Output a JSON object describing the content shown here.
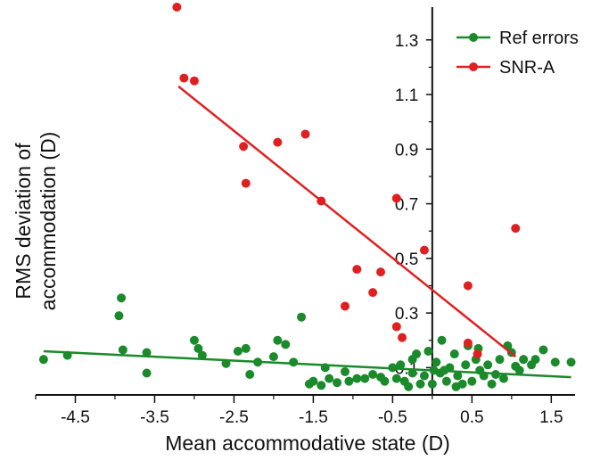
{
  "chart_data": {
    "type": "scatter",
    "title": "",
    "xlabel": "Mean accommodative state (D)",
    "ylabel_lines": [
      "RMS deviation of",
      "accommodation (D)"
    ],
    "xlim": [
      -5.0,
      1.8
    ],
    "ylim": [
      0.0,
      1.42
    ],
    "x_ticks": [
      -4.5,
      -3.5,
      -2.5,
      -1.5,
      -0.5,
      0.5,
      1.5
    ],
    "x_tick_labels": [
      "-4.5",
      "-3.5",
      "-2.5",
      "-1.5",
      "-0.5",
      "0.5",
      "1.5"
    ],
    "y_ticks": [
      0.1,
      0.3,
      0.5,
      0.7,
      0.9,
      1.1,
      1.3
    ],
    "y_tick_labels": [
      "0.1",
      "0.3",
      "0.5",
      "0.7",
      "0.9",
      "1.1",
      "1.3"
    ],
    "y_axis_at_x": 0.0,
    "grid": false,
    "legend_position": "top-right",
    "series": [
      {
        "name": "Ref errors",
        "color": "#1a8a2a",
        "fit": [
          [
            -4.9,
            0.16
          ],
          [
            1.75,
            0.065
          ]
        ],
        "points": [
          [
            -4.9,
            0.13
          ],
          [
            -4.6,
            0.145
          ],
          [
            -3.92,
            0.355
          ],
          [
            -3.95,
            0.29
          ],
          [
            -3.9,
            0.165
          ],
          [
            -3.6,
            0.155
          ],
          [
            -3.6,
            0.08
          ],
          [
            -3.0,
            0.2
          ],
          [
            -2.95,
            0.17
          ],
          [
            -2.9,
            0.145
          ],
          [
            -2.6,
            0.115
          ],
          [
            -2.45,
            0.16
          ],
          [
            -2.35,
            0.17
          ],
          [
            -2.3,
            0.075
          ],
          [
            -2.2,
            0.12
          ],
          [
            -2.0,
            0.14
          ],
          [
            -1.95,
            0.2
          ],
          [
            -1.85,
            0.185
          ],
          [
            -1.75,
            0.12
          ],
          [
            -1.65,
            0.285
          ],
          [
            -1.55,
            0.04
          ],
          [
            -1.5,
            0.05
          ],
          [
            -1.4,
            0.035
          ],
          [
            -1.35,
            0.1
          ],
          [
            -1.3,
            0.06
          ],
          [
            -1.2,
            0.045
          ],
          [
            -1.1,
            0.085
          ],
          [
            -1.05,
            0.05
          ],
          [
            -0.95,
            0.06
          ],
          [
            -0.85,
            0.06
          ],
          [
            -0.75,
            0.075
          ],
          [
            -0.65,
            0.065
          ],
          [
            -0.6,
            0.05
          ],
          [
            -0.5,
            0.1
          ],
          [
            -0.45,
            0.06
          ],
          [
            -0.35,
            0.05
          ],
          [
            -0.3,
            0.03
          ],
          [
            -0.25,
            0.08
          ],
          [
            -0.2,
            0.15
          ],
          [
            -0.15,
            0.04
          ],
          [
            -0.1,
            0.07
          ],
          [
            -0.05,
            0.16
          ],
          [
            0.0,
            0.04
          ],
          [
            0.05,
            0.12
          ],
          [
            0.1,
            0.08
          ],
          [
            0.12,
            0.2
          ],
          [
            0.18,
            0.05
          ],
          [
            0.22,
            0.1
          ],
          [
            0.28,
            0.15
          ],
          [
            0.32,
            0.07
          ],
          [
            0.38,
            0.04
          ],
          [
            0.42,
            0.11
          ],
          [
            0.45,
            0.18
          ],
          [
            0.5,
            0.05
          ],
          [
            0.55,
            0.13
          ],
          [
            0.6,
            0.09
          ],
          [
            0.65,
            0.07
          ],
          [
            0.7,
            0.11
          ],
          [
            0.75,
            0.04
          ],
          [
            0.8,
            0.075
          ],
          [
            0.85,
            0.13
          ],
          [
            0.9,
            0.06
          ],
          [
            0.95,
            0.18
          ],
          [
            1.0,
            0.155
          ],
          [
            1.05,
            0.105
          ],
          [
            1.1,
            0.09
          ],
          [
            1.15,
            0.13
          ],
          [
            1.25,
            0.11
          ],
          [
            1.3,
            0.13
          ],
          [
            1.4,
            0.165
          ],
          [
            1.55,
            0.12
          ],
          [
            1.75,
            0.12
          ],
          [
            -0.25,
            0.13
          ],
          [
            0.3,
            0.03
          ],
          [
            0.15,
            0.09
          ],
          [
            -0.4,
            0.11
          ],
          [
            0.58,
            0.17
          ],
          [
            0.02,
            0.09
          ]
        ]
      },
      {
        "name": "SNR-A",
        "color": "#e02020",
        "fit": [
          [
            -3.2,
            1.13
          ],
          [
            1.05,
            0.14
          ]
        ],
        "points": [
          [
            -3.22,
            1.42
          ],
          [
            -3.13,
            1.16
          ],
          [
            -3.0,
            1.15
          ],
          [
            -2.38,
            0.91
          ],
          [
            -2.35,
            0.775
          ],
          [
            -1.95,
            0.925
          ],
          [
            -1.6,
            0.955
          ],
          [
            -1.4,
            0.71
          ],
          [
            -1.1,
            0.325
          ],
          [
            -0.95,
            0.46
          ],
          [
            -0.65,
            0.45
          ],
          [
            -0.75,
            0.375
          ],
          [
            -0.45,
            0.72
          ],
          [
            -0.45,
            0.25
          ],
          [
            -0.38,
            0.21
          ],
          [
            -0.1,
            0.53
          ],
          [
            0.45,
            0.4
          ],
          [
            0.45,
            0.19
          ],
          [
            0.57,
            0.15
          ],
          [
            1.05,
            0.61
          ]
        ]
      }
    ]
  }
}
